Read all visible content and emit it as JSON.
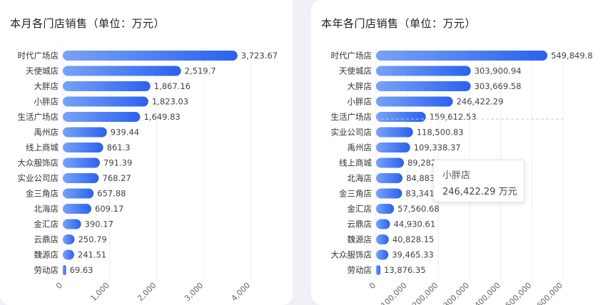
{
  "charts": {
    "left": {
      "title": "本月各门店销售（单位：万元）"
    },
    "right": {
      "title": "本年各门店销售（单位：万元）"
    }
  },
  "tooltip": {
    "name": "小胖店",
    "value": "246,422.29 万元"
  },
  "colors": {
    "bar_start": "#78a2f6",
    "bar_end": "#2a62f0",
    "axis_text": "#666666",
    "label_text": "#444444"
  },
  "chart_data": [
    {
      "type": "bar",
      "orientation": "horizontal",
      "title": "本月各门店销售（单位：万元）",
      "categories": [
        "时代广场店",
        "天使城店",
        "大胖店",
        "小胖店",
        "生活广场店",
        "禹州店",
        "线上商城",
        "大众服饰店",
        "实业公司店",
        "金三角店",
        "北海店",
        "金汇店",
        "云鼎店",
        "魏源店",
        "劳动店"
      ],
      "values": [
        3723.67,
        2519.7,
        1867.16,
        1823.03,
        1649.83,
        939.44,
        861.3,
        791.39,
        768.27,
        657.88,
        609.17,
        390.17,
        250.79,
        241.51,
        69.63
      ],
      "value_labels": [
        "3,723.67",
        "2,519.7",
        "1,867.16",
        "1,823.03",
        "1,649.83",
        "939.44",
        "861.3",
        "791.39",
        "768.27",
        "657.88",
        "609.17",
        "390.17",
        "250.79",
        "241.51",
        "69.63"
      ],
      "xlim": [
        0,
        4000
      ],
      "ticks": [
        0,
        1000,
        2000,
        3000,
        4000
      ],
      "tick_labels": [
        "0",
        "1,000",
        "2,000",
        "3,000",
        "4,000"
      ],
      "grid": true
    },
    {
      "type": "bar",
      "orientation": "horizontal",
      "title": "本年各门店销售（单位：万元）",
      "categories": [
        "时代广场店",
        "天使城店",
        "大胖店",
        "小胖店",
        "生活广场店",
        "实业公司店",
        "禹州店",
        "线上商城",
        "北海店",
        "金三角店",
        "金汇店",
        "云鼎店",
        "魏源店",
        "大众服饰店",
        "劳动店"
      ],
      "values": [
        549849.8,
        303900.94,
        303669.58,
        246422.29,
        159612.53,
        118500.83,
        109338.37,
        89282.13,
        84883,
        83341,
        57560.68,
        44930.61,
        40828.15,
        39465.33,
        13876.35
      ],
      "value_labels": [
        "549,849.8",
        "303,900.94",
        "303,669.58",
        "246,422.29",
        "159,612.53",
        "118,500.83",
        "109,338.37",
        "89,282.13",
        "84,883",
        "83,341",
        "57,560.68",
        "44,930.61",
        "40,828.15",
        "39,465.33",
        "13,876.35"
      ],
      "xlim": [
        0,
        600000
      ],
      "ticks": [
        0,
        100000,
        200000,
        300000,
        400000,
        500000,
        600000
      ],
      "tick_labels": [
        "0",
        "100,000",
        "200,000",
        "300,000",
        "400,000",
        "500,000",
        "600,000"
      ],
      "grid": true,
      "highlighted": "小胖店"
    }
  ]
}
